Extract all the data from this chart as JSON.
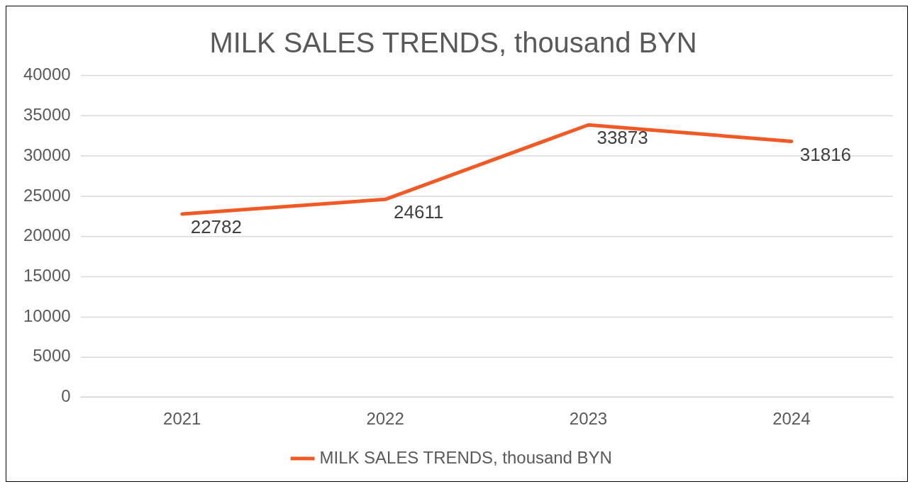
{
  "chart_data": {
    "type": "line",
    "title": "MILK SALES TRENDS, thousand BYN",
    "categories": [
      "2021",
      "2022",
      "2023",
      "2024"
    ],
    "series": [
      {
        "name": "MILK SALES TRENDS, thousand BYN",
        "color": "#f15a24",
        "values": [
          22782,
          24611,
          33873,
          31816
        ]
      }
    ],
    "ylim": [
      0,
      40000
    ],
    "yticks": [
      0,
      5000,
      10000,
      15000,
      20000,
      25000,
      30000,
      35000,
      40000
    ],
    "grid": "y",
    "legend": "bottom",
    "data_labels": true,
    "marker": "none",
    "line_style": "solid"
  }
}
